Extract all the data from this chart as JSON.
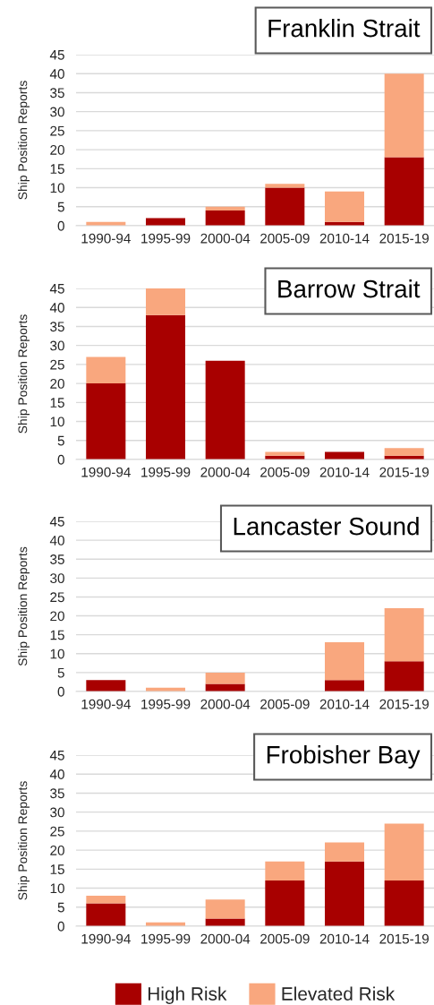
{
  "chart_data": [
    {
      "type": "bar",
      "title": "Franklin Strait",
      "ylabel": "Ship Position Reports",
      "categories": [
        "1990-94",
        "1995-99",
        "2000-04",
        "2005-09",
        "2010-14",
        "2015-19"
      ],
      "stacked": true,
      "ylim": [
        0,
        45
      ],
      "yticks": [
        0,
        5,
        10,
        15,
        20,
        25,
        30,
        35,
        40,
        45
      ],
      "grid": "y",
      "series": [
        {
          "color": "#a80000",
          "values": [
            0,
            2,
            4,
            10,
            1,
            18
          ]
        },
        {
          "color": "#f9a77e",
          "values": [
            1,
            0,
            1,
            1,
            8,
            22
          ]
        }
      ]
    },
    {
      "type": "bar",
      "title": "Barrow Strait",
      "ylabel": "Ship Position Reports",
      "categories": [
        "1990-94",
        "1995-99",
        "2000-04",
        "2005-09",
        "2010-14",
        "2015-19"
      ],
      "stacked": true,
      "ylim": [
        0,
        45
      ],
      "yticks": [
        0,
        5,
        10,
        15,
        20,
        25,
        30,
        35,
        40,
        45
      ],
      "grid": "y",
      "series": [
        {
          "color": "#a80000",
          "values": [
            20,
            38,
            26,
            1,
            2,
            1
          ]
        },
        {
          "color": "#f9a77e",
          "values": [
            7,
            7,
            0,
            1,
            0,
            2
          ]
        }
      ]
    },
    {
      "type": "bar",
      "title": "Lancaster Sound",
      "ylabel": "Ship Position Reports",
      "categories": [
        "1990-94",
        "1995-99",
        "2000-04",
        "2005-09",
        "2010-14",
        "2015-19"
      ],
      "stacked": true,
      "ylim": [
        0,
        45
      ],
      "yticks": [
        0,
        5,
        10,
        15,
        20,
        25,
        30,
        35,
        40,
        45
      ],
      "grid": "y",
      "series": [
        {
          "color": "#a80000",
          "values": [
            3,
            0,
            2,
            0,
            3,
            8
          ]
        },
        {
          "color": "#f9a77e",
          "values": [
            0,
            1,
            3,
            0,
            10,
            14
          ]
        }
      ]
    },
    {
      "type": "bar",
      "title": "Frobisher Bay",
      "ylabel": "Ship Position Reports",
      "categories": [
        "1990-94",
        "1995-99",
        "2000-04",
        "2005-09",
        "2010-14",
        "2015-19"
      ],
      "stacked": true,
      "ylim": [
        0,
        45
      ],
      "yticks": [
        0,
        5,
        10,
        15,
        20,
        25,
        30,
        35,
        40,
        45
      ],
      "grid": "y",
      "legend": "bottom",
      "series": [
        {
          "name": "High Risk",
          "color": "#a80000",
          "values": [
            6,
            0,
            2,
            12,
            17,
            12
          ]
        },
        {
          "name": "Elevated Risk",
          "color": "#f9a77e",
          "values": [
            2,
            1,
            5,
            5,
            5,
            15
          ]
        }
      ]
    }
  ]
}
